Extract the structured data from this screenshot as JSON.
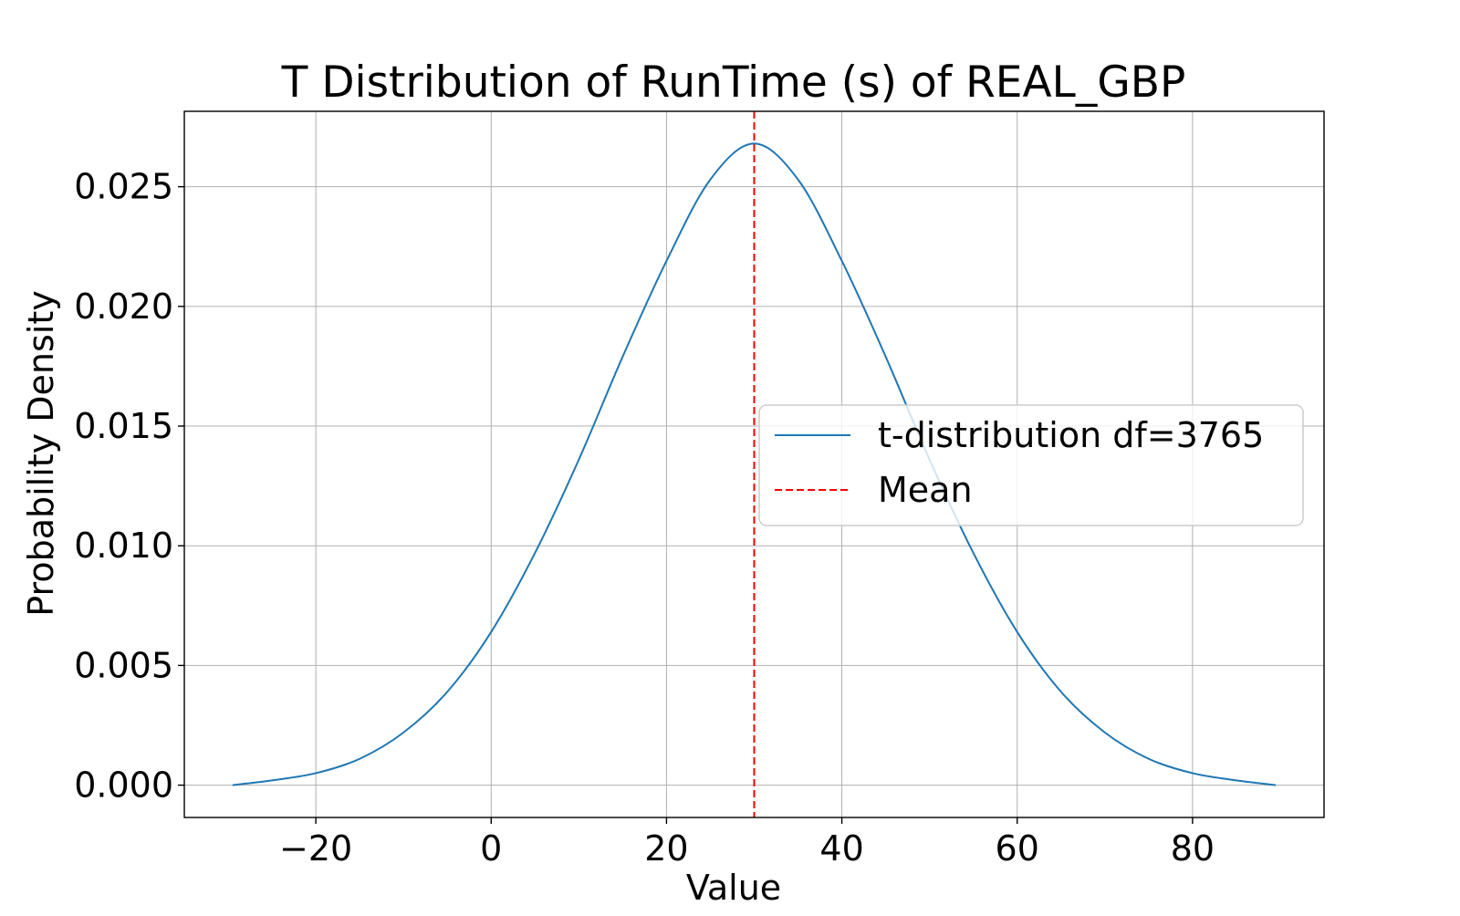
{
  "chart_data": {
    "type": "line",
    "title": "T Distribution of RunTime (s) of REAL_GBP",
    "xlabel": "Value",
    "ylabel": "Probability Density",
    "xlim": [
      -35,
      95
    ],
    "ylim": [
      -0.00135,
      0.02815
    ],
    "x_ticks": [
      -20,
      0,
      20,
      40,
      60,
      80
    ],
    "x_tick_labels": [
      "−20",
      "0",
      "20",
      "40",
      "60",
      "80"
    ],
    "y_ticks": [
      0.0,
      0.005,
      0.01,
      0.015,
      0.02,
      0.025
    ],
    "y_tick_labels": [
      "0.000",
      "0.005",
      "0.010",
      "0.015",
      "0.020",
      "0.025"
    ],
    "grid": true,
    "legend_position": "center-right",
    "series": [
      {
        "name": "t-distribution df=3765",
        "color": "#1f77b4",
        "x": [
          -29.5,
          -25,
          -20,
          -15,
          -10,
          -5,
          0,
          5,
          10,
          15,
          20,
          25,
          30,
          35,
          40,
          45,
          50,
          55,
          60,
          65,
          70,
          75,
          80,
          85,
          89.5
        ],
        "y": [
          0.0,
          0.0002,
          0.0005,
          0.0011,
          0.0022,
          0.0039,
          0.0064,
          0.0097,
          0.0136,
          0.0179,
          0.0219,
          0.0253,
          0.0268,
          0.0253,
          0.0219,
          0.0179,
          0.0136,
          0.0097,
          0.0064,
          0.0039,
          0.0022,
          0.0011,
          0.0005,
          0.0002,
          0.0
        ]
      }
    ],
    "reference_lines": [
      {
        "name": "Mean",
        "orientation": "vertical",
        "x": 30,
        "style": "dashed",
        "color": "#ff0000"
      }
    ]
  }
}
